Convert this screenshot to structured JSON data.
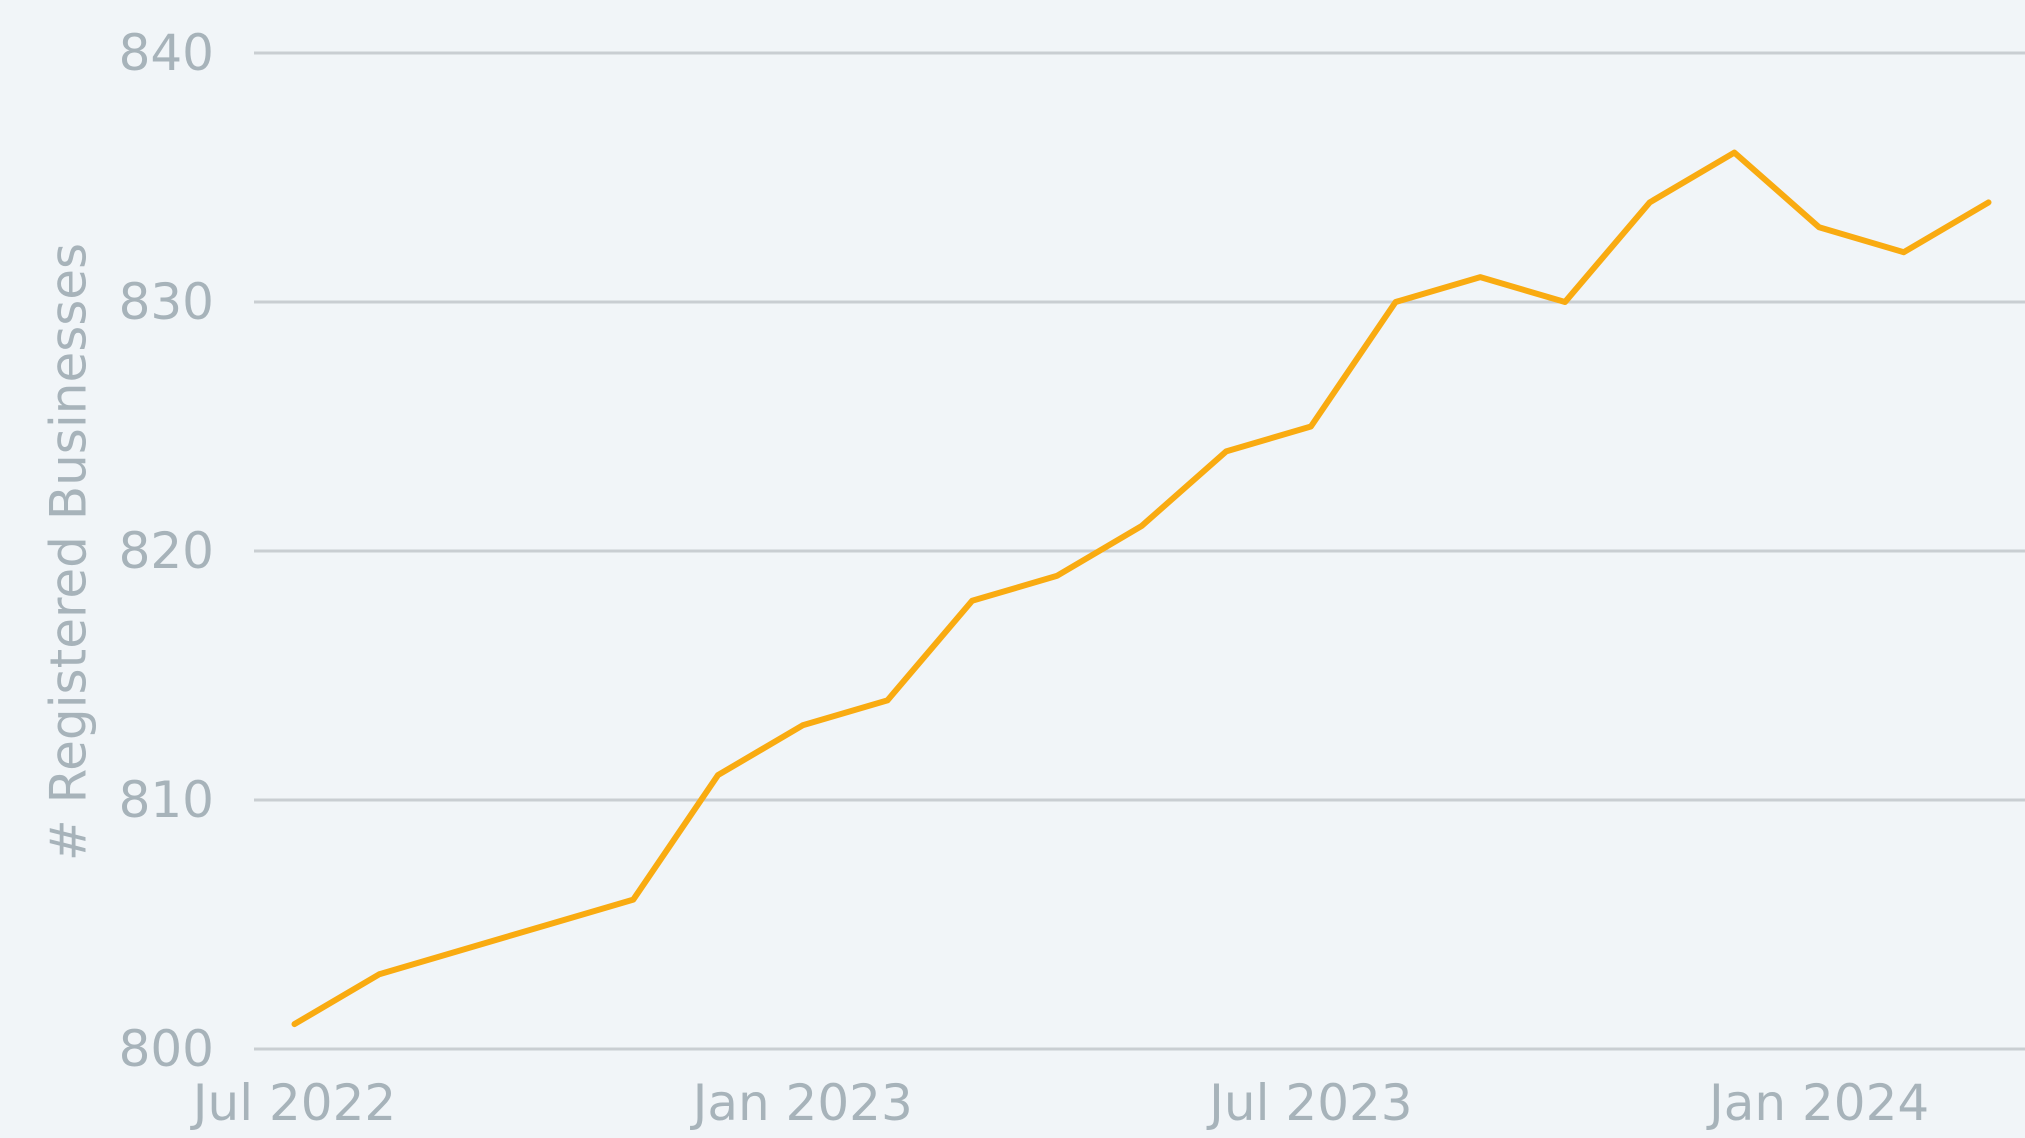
{
  "chart_data": {
    "type": "line",
    "y_label": "# Registered Businesses",
    "x": [
      "2022-07",
      "2022-08",
      "2022-09",
      "2022-10",
      "2022-11",
      "2022-12",
      "2023-01",
      "2023-02",
      "2023-03",
      "2023-04",
      "2023-05",
      "2023-06",
      "2023-07",
      "2023-08",
      "2023-09",
      "2023-10",
      "2023-11",
      "2023-12",
      "2024-01",
      "2024-02",
      "2024-03"
    ],
    "series": [
      {
        "name": "Registered Businesses",
        "color": "#f9ab11",
        "values": [
          801,
          803,
          804,
          805,
          806,
          811,
          813,
          814,
          818,
          819,
          821,
          824,
          825,
          830,
          831,
          830,
          834,
          836,
          833,
          832,
          834
        ]
      }
    ],
    "ylim": [
      800,
      840
    ],
    "yticks": [
      800,
      810,
      820,
      830,
      840
    ],
    "xticks": [
      {
        "value": "2022-07",
        "label": "Jul 2022"
      },
      {
        "value": "2023-01",
        "label": "Jan 2023"
      },
      {
        "value": "2023-07",
        "label": "Jul 2023"
      },
      {
        "value": "2024-01",
        "label": "Jan 2024"
      }
    ],
    "grid": true
  }
}
